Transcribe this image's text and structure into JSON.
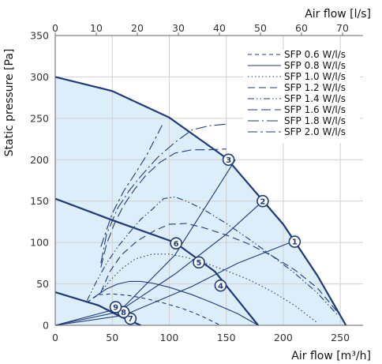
{
  "chart_data": {
    "type": "line",
    "xlabel": "Air flow [m³/h]",
    "x2label": "Air flow [l/s]",
    "ylabel": "Static pressure [Pa]",
    "xlim": [
      0,
      270
    ],
    "x2lim": [
      0,
      75
    ],
    "ylim": [
      0,
      350
    ],
    "xticks": [
      0,
      50,
      100,
      150,
      200,
      250
    ],
    "x2ticks": [
      0,
      10,
      20,
      30,
      40,
      50,
      60,
      70
    ],
    "yticks": [
      0,
      50,
      100,
      150,
      200,
      250,
      300,
      350
    ],
    "grid": true,
    "legend_position": "top-right",
    "colors": {
      "line": "#1e3a78",
      "fill": "#dceefa",
      "grid": "#cfcfcf"
    },
    "fan_curves": [
      {
        "name": "max",
        "x": [
          0,
          50,
          100,
          150,
          200,
          230,
          255
        ],
        "y": [
          300,
          283,
          251,
          202,
          122,
          60,
          0
        ]
      },
      {
        "name": "mid",
        "x": [
          0,
          50,
          105,
          140,
          178
        ],
        "y": [
          153,
          127,
          100,
          65,
          0
        ]
      },
      {
        "name": "low",
        "x": [
          0,
          38,
          58,
          75
        ],
        "y": [
          40,
          24,
          10,
          0
        ]
      }
    ],
    "system_curves": [
      {
        "name": "upper",
        "x": [
          0,
          60,
          120,
          160,
          210
        ],
        "y": [
          0,
          12,
          47,
          75,
          102
        ]
      },
      {
        "name": "middle",
        "x": [
          0,
          55,
          105,
          150,
          182
        ],
        "y": [
          0,
          16,
          62,
          110,
          150
        ]
      },
      {
        "name": "lower",
        "x": [
          0,
          60,
          105,
          135,
          158
        ],
        "y": [
          0,
          22,
          85,
          150,
          200
        ]
      }
    ],
    "series": [
      {
        "name": "SFP 0.6 W/l/s",
        "dash": "5 4",
        "x": [
          28,
          38,
          50,
          65,
          80,
          95,
          110,
          120,
          130,
          145
        ],
        "y": [
          28,
          37,
          38,
          36,
          32,
          27,
          21,
          16,
          10,
          0
        ]
      },
      {
        "name": "SFP 0.8 W/l/s",
        "dash": "",
        "x": [
          33,
          45,
          55,
          65,
          75,
          85,
          100,
          120,
          140,
          160,
          178
        ],
        "y": [
          33,
          44,
          50,
          53,
          53,
          51,
          46,
          37,
          26,
          14,
          0
        ]
      },
      {
        "name": "SFP 1.0 W/l/s",
        "dash": "1.5 3",
        "x": [
          40,
          48,
          58,
          70,
          85,
          100,
          115,
          130,
          150,
          170,
          190,
          210,
          230
        ],
        "y": [
          40,
          54,
          68,
          80,
          86,
          86,
          82,
          76,
          66,
          55,
          41,
          24,
          3
        ]
      },
      {
        "name": "SFP 1.2 W/l/s",
        "dash": "9 5",
        "x": [
          40,
          48,
          58,
          72,
          88,
          100,
          115,
          130,
          150,
          170,
          190,
          210,
          230,
          250
        ],
        "y": [
          40,
          65,
          85,
          102,
          115,
          122,
          123,
          118,
          109,
          98,
          84,
          67,
          45,
          12
        ]
      },
      {
        "name": "SFP 1.4 W/l/s",
        "dash": "8 3 1.5 3 1.5 3",
        "x": [
          28,
          35,
          45,
          55,
          65,
          75,
          85,
          95,
          105,
          115,
          130,
          150,
          170,
          190,
          210,
          230,
          248
        ],
        "y": [
          30,
          50,
          75,
          95,
          112,
          128,
          140,
          153,
          155,
          150,
          140,
          123,
          104,
          84,
          63,
          39,
          12
        ]
      },
      {
        "name": "SFP 1.6 W/l/s",
        "dash": "12 5",
        "x": [
          40,
          45,
          52,
          60,
          70,
          80,
          92,
          105,
          120,
          135,
          150
        ],
        "y": [
          70,
          98,
          123,
          145,
          165,
          182,
          197,
          208,
          212,
          212,
          213
        ]
      },
      {
        "name": "SFP 1.8 W/l/s",
        "dash": "14 4 2 4",
        "x": [
          40,
          45,
          55,
          65,
          75,
          90,
          105,
          120,
          135,
          150
        ],
        "y": [
          75,
          110,
          142,
          163,
          180,
          203,
          221,
          236,
          241,
          243
        ]
      },
      {
        "name": "SFP 2.0 W/l/s",
        "dash": "12 4 3 4",
        "x": [
          40,
          50,
          60,
          70,
          80,
          95
        ],
        "y": [
          95,
          135,
          162,
          183,
          205,
          245
        ]
      }
    ],
    "markers": [
      {
        "label": "1",
        "x": 210,
        "y": 101
      },
      {
        "label": "2",
        "x": 182,
        "y": 150
      },
      {
        "label": "3",
        "x": 152,
        "y": 200
      },
      {
        "label": "4",
        "x": 145,
        "y": 48
      },
      {
        "label": "5",
        "x": 126,
        "y": 76
      },
      {
        "label": "6",
        "x": 106,
        "y": 99
      },
      {
        "label": "7",
        "x": 66,
        "y": 8
      },
      {
        "label": "8",
        "x": 60,
        "y": 16
      },
      {
        "label": "9",
        "x": 53,
        "y": 22
      }
    ]
  }
}
